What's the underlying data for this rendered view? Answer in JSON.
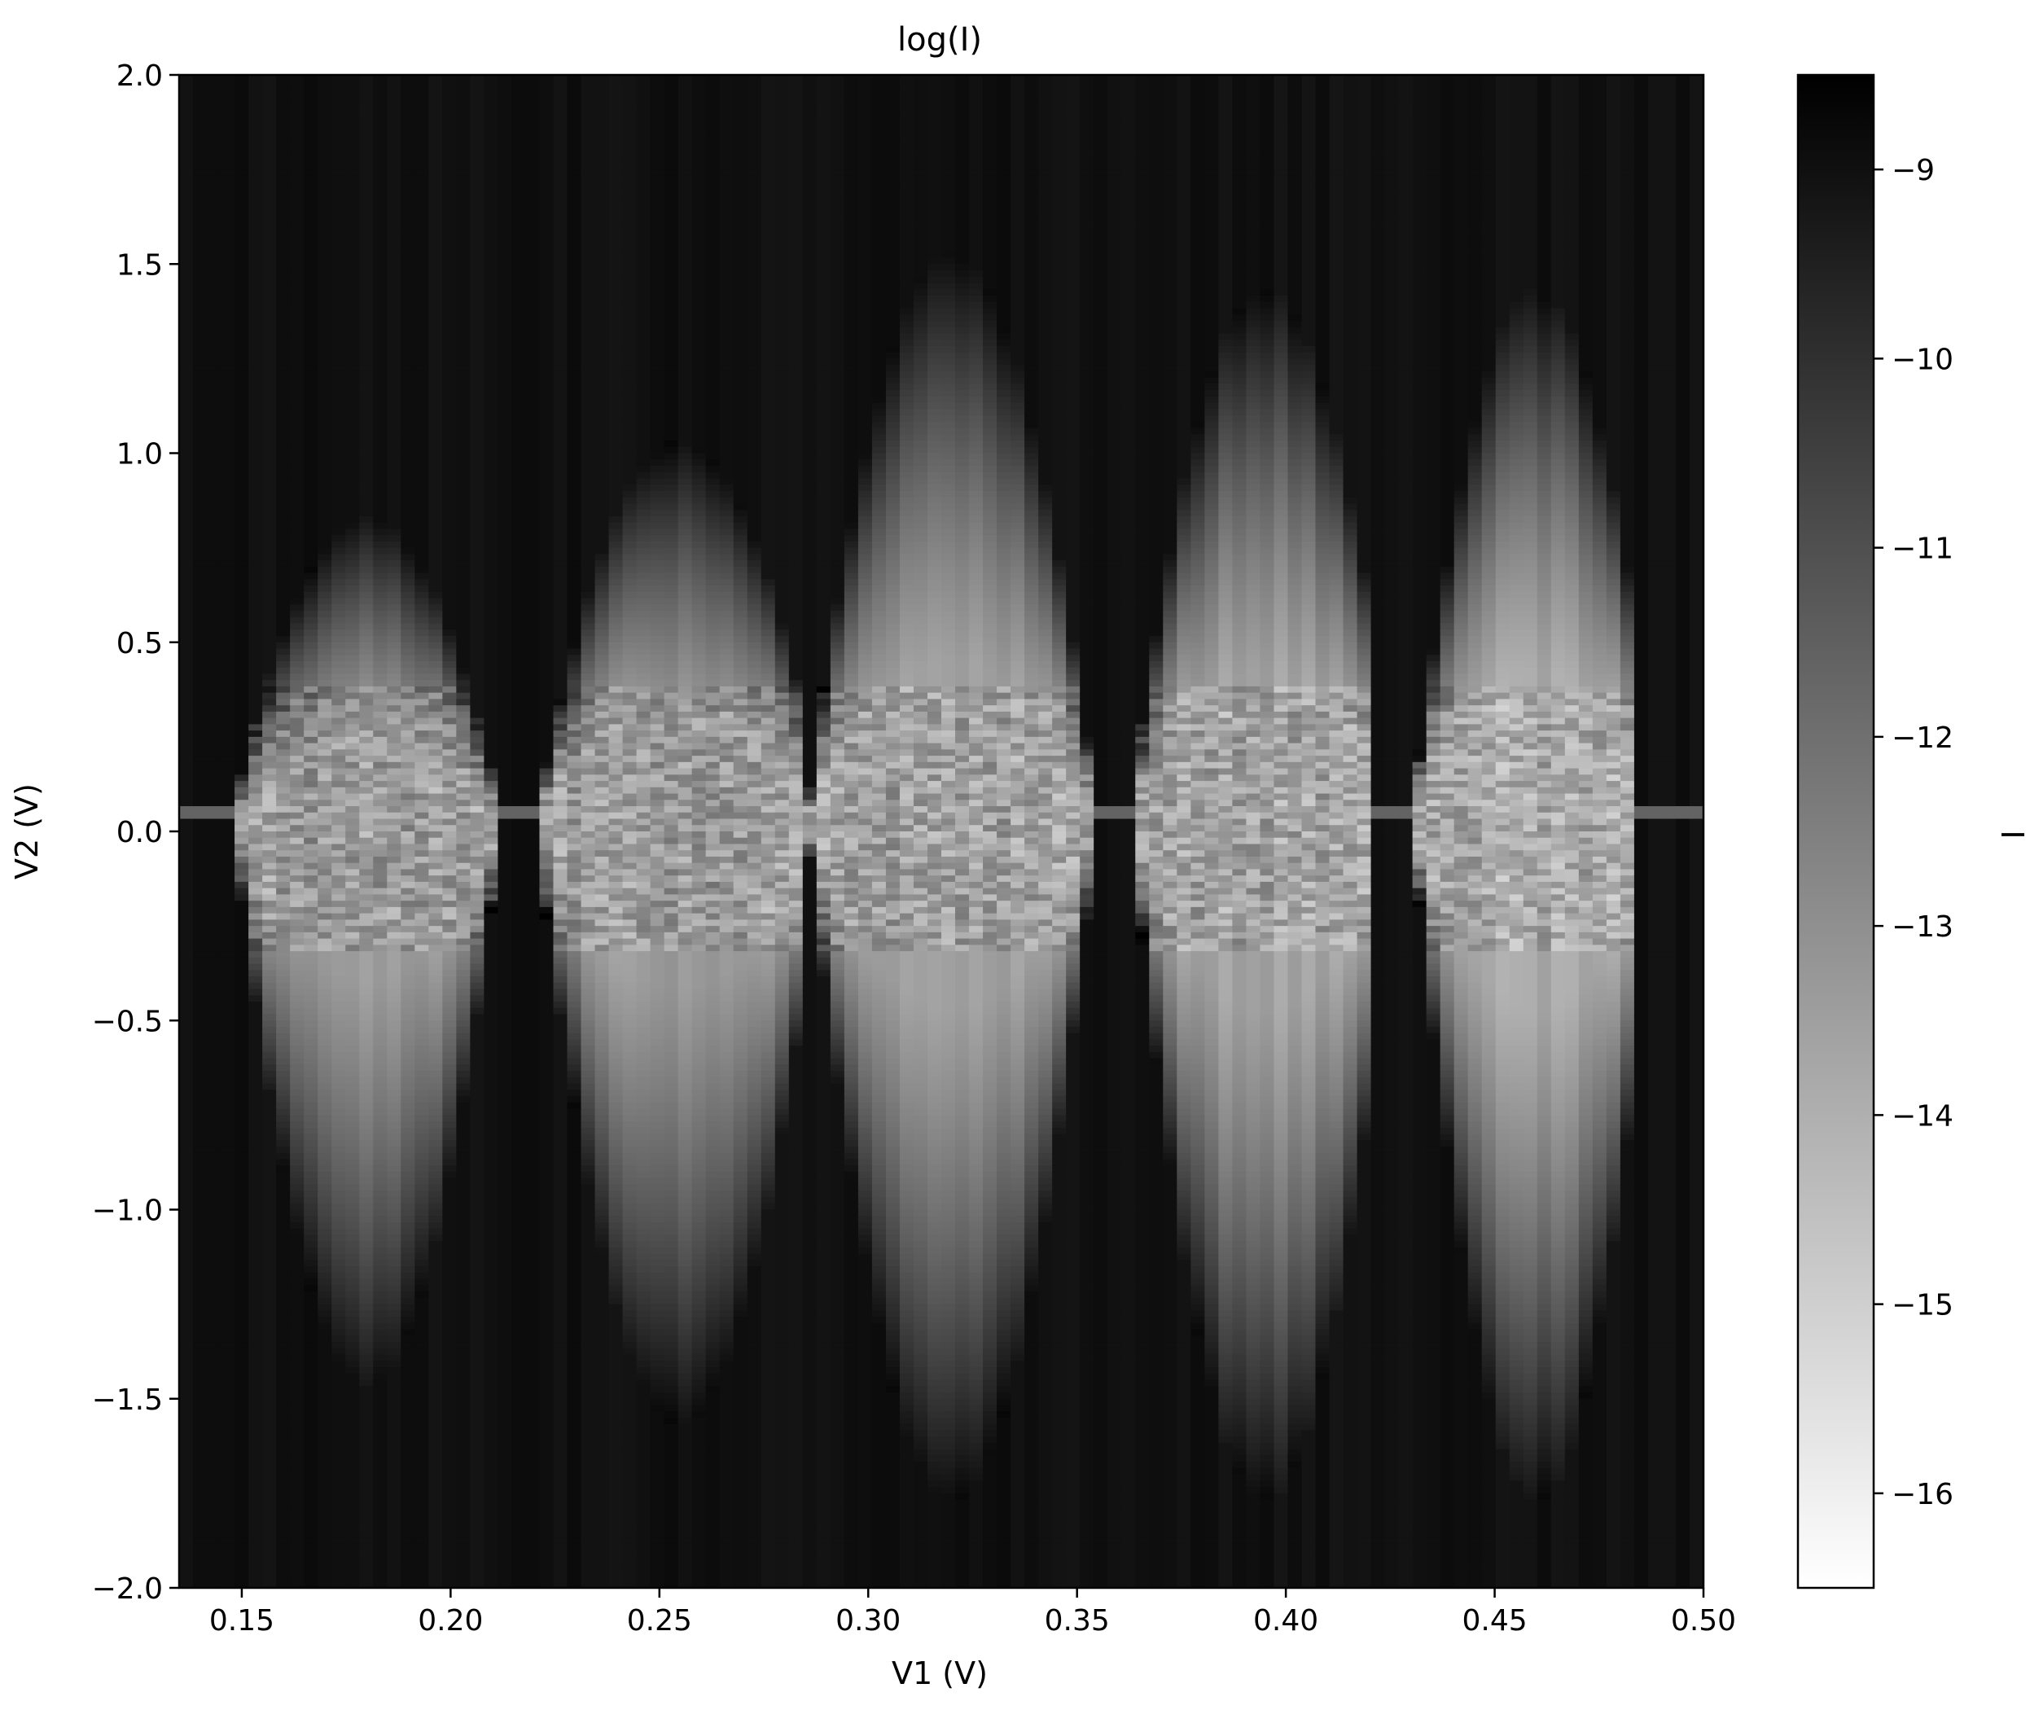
{
  "chart_data": {
    "type": "heatmap",
    "title": "log(I)",
    "xlabel": "V1 (V)",
    "ylabel": "V2 (V)",
    "xlim": [
      0.135,
      0.5
    ],
    "ylim": [
      -2.0,
      2.0
    ],
    "x_ticks": [
      0.15,
      0.2,
      0.25,
      0.3,
      0.35,
      0.4,
      0.45,
      0.5
    ],
    "x_tick_labels": [
      "0.15",
      "0.20",
      "0.25",
      "0.30",
      "0.35",
      "0.40",
      "0.45",
      "0.50"
    ],
    "y_ticks": [
      2.0,
      1.5,
      1.0,
      0.5,
      0.0,
      -0.5,
      -1.0,
      -1.5,
      -2.0
    ],
    "y_tick_labels": [
      "2.0",
      "1.5",
      "1.0",
      "0.5",
      "0.0",
      "−0.5",
      "−1.0",
      "−1.5",
      "−2.0"
    ],
    "colormap": "grayscale (white = low, black = high)",
    "colorbar": {
      "label": "I",
      "range": [
        -16.5,
        -8.5
      ],
      "ticks": [
        -9,
        -10,
        -11,
        -12,
        -13,
        -14,
        -15,
        -16
      ],
      "tick_labels": [
        "−9",
        "−10",
        "−11",
        "−12",
        "−13",
        "−14",
        "−15",
        "−16"
      ]
    },
    "diamonds": [
      {
        "x_left": 0.145,
        "x_right": 0.21,
        "x_center": 0.18,
        "half_width_top": 0.3,
        "half_width_bottom": 1.1,
        "apex_top": 0.8,
        "apex_bottom": -1.5,
        "peak_log_i": -13.4
      },
      {
        "x_left": 0.215,
        "x_right": 0.285,
        "x_center": 0.255,
        "half_width_top": 0.35,
        "half_width_bottom": 1.2,
        "apex_top": 1.0,
        "apex_bottom": -1.6,
        "peak_log_i": -13.4
      },
      {
        "x_left": 0.285,
        "x_right": 0.355,
        "x_center": 0.32,
        "half_width_top": 0.4,
        "half_width_bottom": 1.3,
        "apex_top": 1.5,
        "apex_bottom": -1.8,
        "peak_log_i": -13.6
      },
      {
        "x_left": 0.355,
        "x_right": 0.42,
        "x_center": 0.395,
        "half_width_top": 0.45,
        "half_width_bottom": 1.4,
        "apex_top": 1.4,
        "apex_bottom": -1.8,
        "peak_log_i": -13.6
      },
      {
        "x_left": 0.425,
        "x_right": 0.485,
        "x_center": 0.46,
        "half_width_top": 0.5,
        "half_width_bottom": 1.5,
        "apex_top": 1.4,
        "apex_bottom": -1.8,
        "peak_log_i": -13.8
      }
    ],
    "background_log_i": -9.0,
    "zero_bias_line_v2": 0.05
  }
}
